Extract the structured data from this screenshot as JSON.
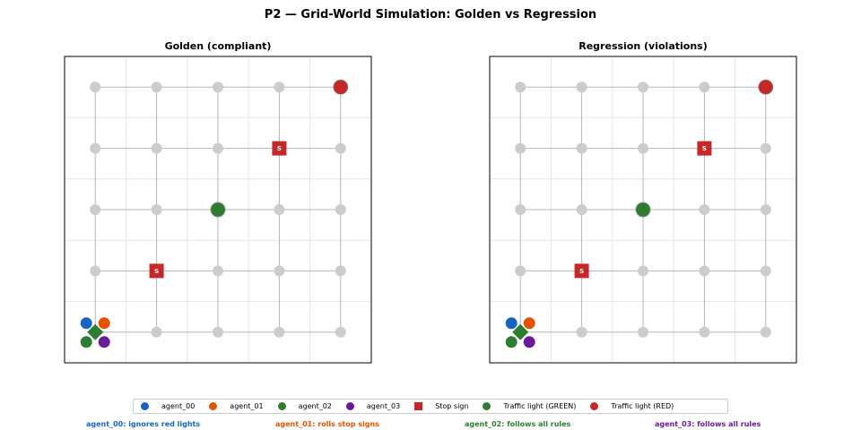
{
  "title": "P2 — Grid-World Simulation: Golden vs Regression",
  "chart_data": [
    {
      "type": "scatter",
      "title": "Golden  (compliant)",
      "grid_size": 5,
      "xlim": [
        -0.5,
        4.5
      ],
      "ylim": [
        -0.5,
        4.5
      ],
      "grid": true,
      "stop_signs": [
        [
          1,
          1
        ],
        [
          3,
          3
        ]
      ],
      "stop_sign_label": "S",
      "traffic_lights": [
        {
          "pos": [
            2,
            2
          ],
          "state": "GREEN"
        },
        {
          "pos": [
            4,
            4
          ],
          "state": "RED"
        }
      ],
      "start_marker": {
        "pos": [
          0,
          0
        ],
        "shape": "diamond",
        "color": "#2e7d32"
      },
      "agents": [
        {
          "name": "agent_00",
          "pos": [
            0,
            0
          ]
        },
        {
          "name": "agent_01",
          "pos": [
            0,
            0
          ]
        },
        {
          "name": "agent_02",
          "pos": [
            0,
            0
          ]
        },
        {
          "name": "agent_03",
          "pos": [
            0,
            0
          ]
        }
      ]
    },
    {
      "type": "scatter",
      "title": "Regression  (violations)",
      "grid_size": 5,
      "xlim": [
        -0.5,
        4.5
      ],
      "ylim": [
        -0.5,
        4.5
      ],
      "grid": true,
      "stop_signs": [
        [
          1,
          1
        ],
        [
          3,
          3
        ]
      ],
      "stop_sign_label": "S",
      "traffic_lights": [
        {
          "pos": [
            2,
            2
          ],
          "state": "GREEN"
        },
        {
          "pos": [
            4,
            4
          ],
          "state": "RED"
        }
      ],
      "start_marker": {
        "pos": [
          0,
          0
        ],
        "shape": "diamond",
        "color": "#2e7d32"
      },
      "agents": [
        {
          "name": "agent_00",
          "pos": [
            0,
            0
          ]
        },
        {
          "name": "agent_01",
          "pos": [
            0,
            0
          ]
        },
        {
          "name": "agent_02",
          "pos": [
            0,
            0
          ]
        },
        {
          "name": "agent_03",
          "pos": [
            0,
            0
          ]
        }
      ]
    }
  ],
  "colors": {
    "agent_00": "#1565c0",
    "agent_01": "#e65100",
    "agent_02": "#2e7d32",
    "agent_03": "#6a1b9a",
    "stop": "#c62828",
    "green": "#2e7d32",
    "red": "#c62828",
    "node": "#cccccc"
  },
  "legend": [
    {
      "label": "agent_00",
      "color": "#1565c0",
      "shape": "circle"
    },
    {
      "label": "agent_01",
      "color": "#e65100",
      "shape": "circle"
    },
    {
      "label": "agent_02",
      "color": "#2e7d32",
      "shape": "circle"
    },
    {
      "label": "agent_03",
      "color": "#6a1b9a",
      "shape": "circle"
    },
    {
      "label": "Stop sign",
      "color": "#c62828",
      "shape": "square"
    },
    {
      "label": "Traffic light (GREEN)",
      "color": "#2e7d32",
      "shape": "circle"
    },
    {
      "label": "Traffic light (RED)",
      "color": "#c62828",
      "shape": "circle"
    }
  ],
  "notes": [
    {
      "text": "agent_00: ignores red lights",
      "color": "#1565c0"
    },
    {
      "text": "agent_01: rolls stop signs",
      "color": "#e65100"
    },
    {
      "text": "agent_02: follows all rules",
      "color": "#2e7d32"
    },
    {
      "text": "agent_03: follows all rules",
      "color": "#6a1b9a"
    }
  ]
}
